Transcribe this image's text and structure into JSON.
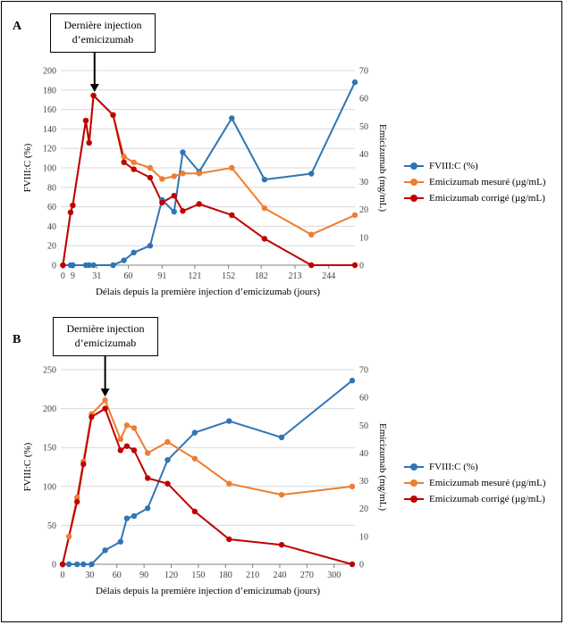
{
  "colors": {
    "fviii": "#2E75B6",
    "emi_mes": "#ED7D31",
    "emi_cor": "#C00000",
    "grid": "#D9D9D9",
    "axis": "#808080"
  },
  "panels": [
    {
      "letter": "A",
      "annotation": "Dernière injection d’emicizumab",
      "annotation_x": 29,
      "xlabel": "Délais depuis la première injection d’emicizumab (jours)",
      "legend": [
        "FVIII:C (%)",
        "Emicizumab mesuré (µg/mL)",
        "Emicizumab corrigé (µg/mL)"
      ]
    },
    {
      "letter": "B",
      "annotation": "Dernière injection d’emicizumab",
      "annotation_x": 47,
      "xlabel": "Délais depuis la première injection d’emicizumab (jours)",
      "legend": [
        "FVIII:C (%)",
        "Emicizumab mesuré (µg/mL)",
        "Emicizumab corrigé (µg/mL)"
      ]
    }
  ],
  "chart_data": [
    {
      "type": "line",
      "xlim": [
        -2,
        268
      ],
      "xticks": [
        0,
        9,
        31,
        60,
        91,
        121,
        152,
        182,
        213,
        244
      ],
      "xlabel": "Délais depuis la première injection d’emicizumab (jours)",
      "ylabel": "FVIII:C (%)",
      "ylim": [
        0,
        200
      ],
      "yticks": [
        0,
        20,
        40,
        60,
        80,
        100,
        120,
        140,
        160,
        180,
        200
      ],
      "ylabel2": "Emicizumab (mg/mL)",
      "ylim2": [
        0,
        70
      ],
      "yticks2": [
        0,
        10,
        20,
        30,
        40,
        50,
        60,
        70
      ],
      "series": [
        {
          "name": "FVIII:C (%)",
          "axis": "left",
          "x": [
            0,
            7,
            9,
            21,
            24,
            28,
            46,
            56,
            65,
            80,
            91,
            102,
            110,
            125,
            155,
            185,
            228,
            268
          ],
          "y": [
            0,
            0,
            0,
            0,
            0,
            0,
            0,
            5,
            13,
            20,
            67,
            55,
            116,
            96,
            151,
            88,
            94,
            188
          ]
        },
        {
          "name": "Emicizumab mesuré (µg/mL)",
          "axis": "right",
          "x": [
            0,
            7,
            9,
            21,
            24,
            28,
            46,
            56,
            65,
            80,
            91,
            102,
            110,
            125,
            155,
            185,
            228,
            268
          ],
          "y": [
            0,
            19,
            21.5,
            52,
            44,
            61,
            54,
            39,
            37,
            35,
            31,
            32,
            33,
            33,
            35,
            20.5,
            11,
            18
          ]
        },
        {
          "name": "Emicizumab corrigé (µg/mL)",
          "axis": "right",
          "x": [
            0,
            7,
            9,
            21,
            24,
            28,
            46,
            56,
            65,
            80,
            91,
            102,
            110,
            125,
            155,
            185,
            228,
            268
          ],
          "y": [
            0,
            19,
            21.5,
            52,
            44,
            61,
            54,
            37,
            34.5,
            31.5,
            22.5,
            25,
            19.5,
            22,
            18,
            9.5,
            0,
            0
          ]
        }
      ]
    },
    {
      "type": "line",
      "xlim": [
        -2,
        323
      ],
      "xticks": [
        0,
        30,
        60,
        90,
        120,
        150,
        180,
        210,
        240,
        270,
        300
      ],
      "xlabel": "Délais depuis la première injection d’emicizumab (jours)",
      "ylabel": "FVIII:C (%)",
      "ylim": [
        0,
        250
      ],
      "yticks": [
        0,
        50,
        100,
        150,
        200,
        250
      ],
      "ylabel2": "Emicizumab (mg/mL)",
      "ylim2": [
        0,
        70
      ],
      "yticks2": [
        0,
        10,
        20,
        30,
        40,
        50,
        60,
        70
      ],
      "series": [
        {
          "name": "FVIII:C (%)",
          "axis": "left",
          "x": [
            0,
            7,
            16,
            23,
            32,
            47,
            64,
            71,
            79,
            94,
            116,
            146,
            184,
            242,
            320
          ],
          "y": [
            0,
            0,
            0,
            0,
            0,
            18,
            29,
            59,
            62,
            72,
            134,
            169,
            184,
            163,
            236
          ]
        },
        {
          "name": "Emicizumab mesuré (µg/mL)",
          "axis": "right",
          "x": [
            0,
            7,
            16,
            23,
            32,
            47,
            64,
            71,
            79,
            94,
            116,
            146,
            184,
            242,
            320
          ],
          "y": [
            0,
            10,
            24,
            37,
            54,
            59,
            45,
            50,
            49,
            40,
            44,
            38,
            29,
            25,
            28
          ]
        },
        {
          "name": "Emicizumab corrigé (µg/mL)",
          "axis": "right",
          "x": [
            0,
            16,
            23,
            32,
            47,
            64,
            71,
            79,
            94,
            116,
            146,
            184,
            242,
            320
          ],
          "y": [
            0,
            22.5,
            36,
            53,
            56,
            41,
            42.5,
            41,
            31,
            29,
            19,
            9,
            7,
            0
          ]
        }
      ]
    }
  ]
}
